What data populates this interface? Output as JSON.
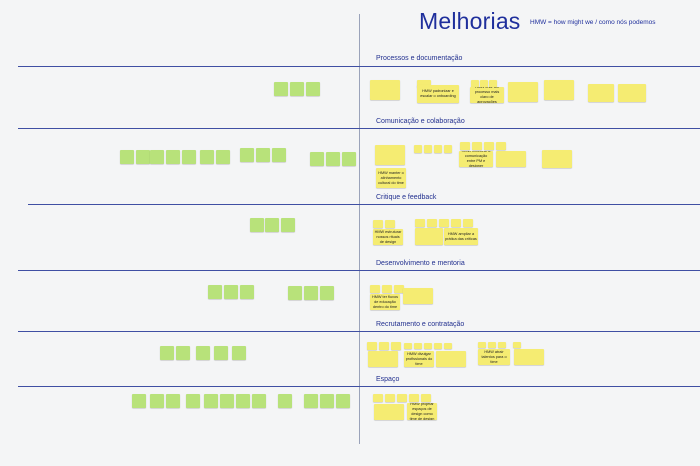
{
  "header": {
    "title": "Melhorias",
    "subtitle": "HMW = how might we / como nós podemos"
  },
  "sections": [
    "Processos e documentação",
    "Comunicação e colaboração",
    "Critique e feedback",
    "Desenvolvimento e mentoria",
    "Recrutamento e contratação",
    "Espaço"
  ],
  "notes": {
    "n1": "HMW padronizar e escalar o onboarding",
    "n2": "HMW criar um processo mais claro de aprovações",
    "n3": "HMW manter o alinhamento cultural do time",
    "n4": "HMW melhorar a comunicação entre PM e designer",
    "n5": "HMW estruturar nossos rituais de design",
    "n6": "HMW ampliar a prática das críticas",
    "n7": "HMW ter fluxos de educação dentro do time",
    "n8": "HMW divulgar profissionais do time",
    "n9": "HMW atrair talentos para o time",
    "n10": "HMW projetar espaços de design como time de design"
  },
  "colors": {
    "sticky_yellow": "#f5ec72",
    "sticky_green": "#b8e27a",
    "accent_blue": "#1f2f9c",
    "divider": "#3f4fa3"
  }
}
